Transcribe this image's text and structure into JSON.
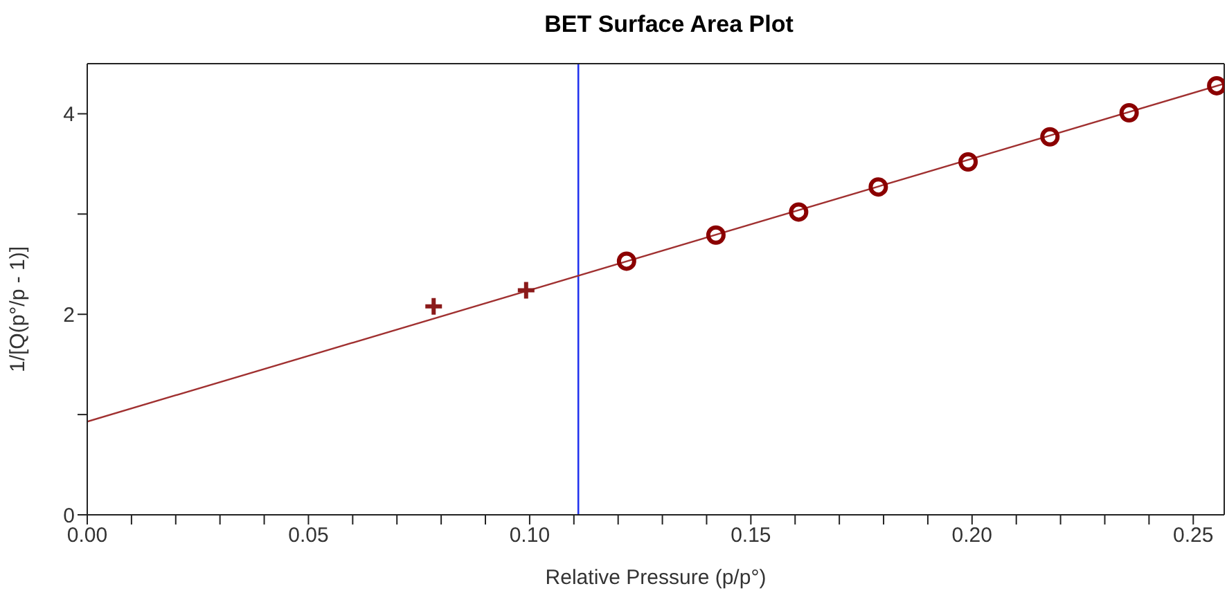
{
  "chart_data": {
    "type": "scatter",
    "title": "BET Surface Area Plot",
    "xlabel": "Relative Pressure (p/p°)",
    "ylabel": "1/[Q(p°/p - 1)]",
    "xlim": [
      0,
      0.257
    ],
    "ylim": [
      0,
      4.5
    ],
    "xticks": [
      {
        "value": 0,
        "label": "0.00"
      },
      {
        "value": 0.01,
        "label": null
      },
      {
        "value": 0.02,
        "label": null
      },
      {
        "value": 0.03,
        "label": null
      },
      {
        "value": 0.04,
        "label": null
      },
      {
        "value": 0.05,
        "label": "0.05"
      },
      {
        "value": 0.06,
        "label": null
      },
      {
        "value": 0.07,
        "label": null
      },
      {
        "value": 0.08,
        "label": null
      },
      {
        "value": 0.09,
        "label": null
      },
      {
        "value": 0.1,
        "label": "0.10"
      },
      {
        "value": 0.11,
        "label": null
      },
      {
        "value": 0.12,
        "label": null
      },
      {
        "value": 0.13,
        "label": null
      },
      {
        "value": 0.14,
        "label": null
      },
      {
        "value": 0.15,
        "label": "0.15"
      },
      {
        "value": 0.16,
        "label": null
      },
      {
        "value": 0.17,
        "label": null
      },
      {
        "value": 0.18,
        "label": null
      },
      {
        "value": 0.19,
        "label": null
      },
      {
        "value": 0.2,
        "label": "0.20"
      },
      {
        "value": 0.21,
        "label": null
      },
      {
        "value": 0.22,
        "label": null
      },
      {
        "value": 0.23,
        "label": null
      },
      {
        "value": 0.24,
        "label": null
      },
      {
        "value": 0.25,
        "label": "0.25"
      }
    ],
    "yticks": [
      0,
      {
        "value": 1,
        "label": null
      },
      2,
      {
        "value": 3,
        "label": null
      },
      4
    ],
    "series": [
      {
        "type": "scatter",
        "marker": "cross",
        "color": "#8b1a1a",
        "x": [
          0.0783,
          0.0992
        ],
        "values": [
          2.08,
          2.24
        ]
      },
      {
        "type": "scatter",
        "marker": "circle",
        "color": "#8b0000",
        "x": [
          0.1219,
          0.1421,
          0.1608,
          0.1788,
          0.1991,
          0.2176,
          0.2355,
          0.2553
        ],
        "values": [
          2.53,
          2.79,
          3.02,
          3.27,
          3.52,
          3.77,
          4.01,
          4.28
        ]
      },
      {
        "type": "line",
        "marker": "none",
        "color": "#a03030",
        "x": [
          0,
          0.257
        ],
        "values": [
          0.93,
          4.3
        ]
      }
    ],
    "ref_lines": [
      {
        "axis": "x",
        "value": 0.111,
        "color": "#2233ee"
      }
    ]
  }
}
